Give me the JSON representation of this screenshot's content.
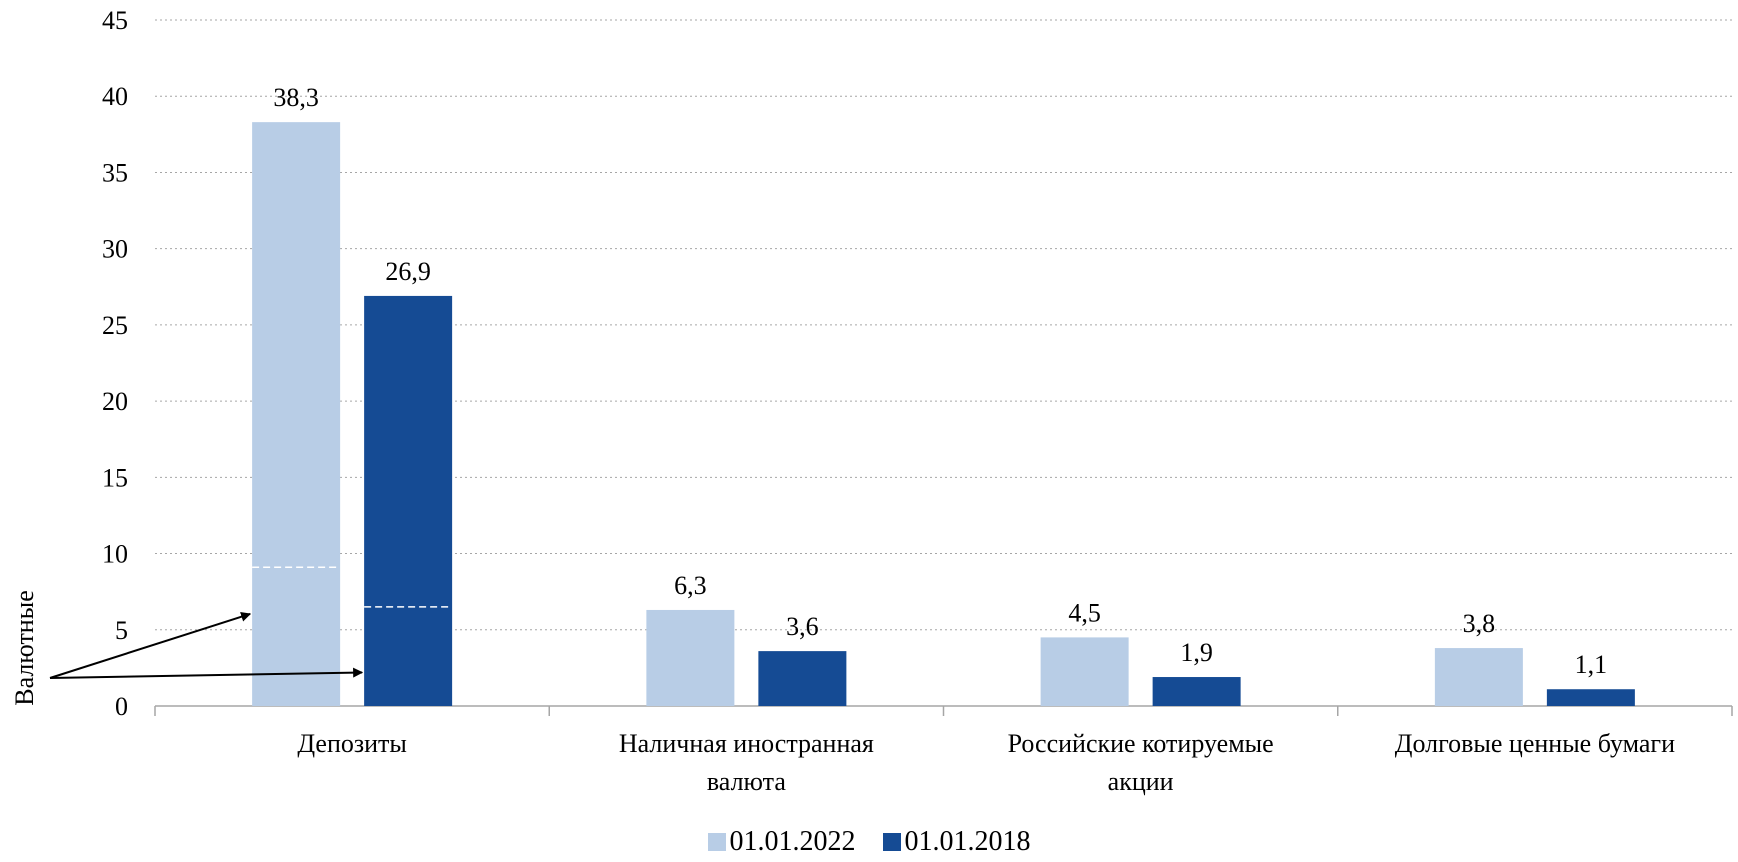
{
  "chart_data": {
    "type": "bar",
    "categories": [
      [
        "Депозиты"
      ],
      [
        "Наличная иностранная",
        "валюта"
      ],
      [
        "Российские котируемые",
        "акции"
      ],
      [
        "Долговые ценные бумаги"
      ]
    ],
    "series": [
      {
        "name": "01.01.2022",
        "color": "#b8cde6",
        "values": [
          38.3,
          6.3,
          4.5,
          3.8
        ],
        "labels": [
          "38,3",
          "6,3",
          "4,5",
          "3,8"
        ]
      },
      {
        "name": "01.01.2018",
        "color": "#154b94",
        "values": [
          26.9,
          3.6,
          1.9,
          1.1
        ],
        "labels": [
          "26,9",
          "3,6",
          "1,9",
          "1,1"
        ]
      }
    ],
    "ylim": [
      0,
      45
    ],
    "yticks": [
      0,
      5,
      10,
      15,
      20,
      25,
      30,
      35,
      40,
      45
    ],
    "grid": true,
    "gridlines": "dotted",
    "legend_position": "bottom",
    "annotation": {
      "text": "Валютные",
      "segments": [
        {
          "category": 0,
          "series": 0,
          "value": 9.1
        },
        {
          "category": 0,
          "series": 1,
          "value": 6.5
        }
      ]
    }
  }
}
